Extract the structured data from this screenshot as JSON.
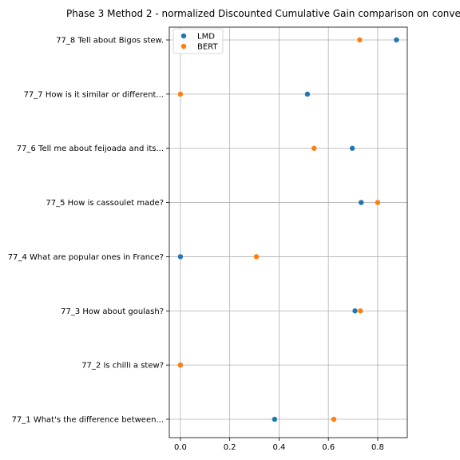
{
  "chart_data": {
    "type": "scatter",
    "title": "Phase 3 Method 2 - normalized Discounted Cumulative Gain comparison on conve",
    "xlabel": "",
    "ylabel": "",
    "xlim": [
      -0.045,
      0.92
    ],
    "xticks": [
      "0.0",
      "0.2",
      "0.4",
      "0.6",
      "0.8"
    ],
    "xtick_values": [
      0.0,
      0.2,
      0.4,
      0.6,
      0.8
    ],
    "grid": true,
    "legend_position": "top-left",
    "categories": [
      "77_8 Tell about Bigos stew.",
      "77_7 How is it similar or different...",
      "77_6 Tell me about feijoada and its...",
      "77_5 How is cassoulet made?",
      "77_4 What are popular ones in France?",
      "77_3 How about goulash?",
      "77_2 Is chilli a stew?",
      "77_1 What's the difference between..."
    ],
    "series": [
      {
        "name": "LMD",
        "color": "#1f77b4",
        "values": [
          0.876,
          0.515,
          0.697,
          0.733,
          0.0,
          0.708,
          0.0,
          0.382
        ]
      },
      {
        "name": "BERT",
        "color": "#ff7f0e",
        "values": [
          0.727,
          0.0,
          0.542,
          0.8,
          0.308,
          0.73,
          0.0,
          0.622
        ]
      }
    ]
  }
}
